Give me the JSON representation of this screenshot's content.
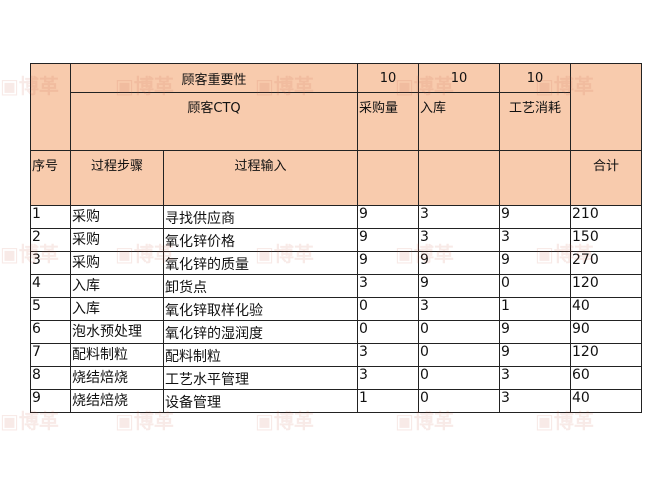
{
  "watermark": "博革",
  "header": {
    "importance_label": "顾客重要性",
    "importance": [
      "10",
      "10",
      "10"
    ],
    "ctq_label": "顾客CTQ",
    "ctq": [
      "采购量",
      "入库",
      "工艺消耗"
    ],
    "col_index": "序号",
    "col_step": "过程步骤",
    "col_input": "过程输入",
    "col_total": "合计"
  },
  "rows": [
    {
      "no": "1",
      "step": "采购",
      "input": "寻找供应商",
      "a": "9",
      "b": "3",
      "c": "9",
      "total": "210"
    },
    {
      "no": "2",
      "step": "采购",
      "input": "氧化锌价格",
      "a": "9",
      "b": "3",
      "c": "3",
      "total": "150"
    },
    {
      "no": "3",
      "step": "采购",
      "input": "氧化锌的质量",
      "a": "9",
      "b": "9",
      "c": "9",
      "total": "270"
    },
    {
      "no": "4",
      "step": "入库",
      "input": "卸货点",
      "a": "3",
      "b": "9",
      "c": "0",
      "total": "120"
    },
    {
      "no": "5",
      "step": "入库",
      "input": "氧化锌取样化验",
      "a": "0",
      "b": "3",
      "c": "1",
      "total": "40"
    },
    {
      "no": "6",
      "step": "泡水预处理",
      "input": "氧化锌的湿润度",
      "a": "0",
      "b": "0",
      "c": "9",
      "total": "90"
    },
    {
      "no": "7",
      "step": "配料制粒",
      "input": "配料制粒",
      "a": "3",
      "b": "0",
      "c": "9",
      "total": "120"
    },
    {
      "no": "8",
      "step": "烧结焙烧",
      "input": "工艺水平管理",
      "a": "3",
      "b": "0",
      "c": "3",
      "total": "60"
    },
    {
      "no": "9",
      "step": "烧结焙烧",
      "input": "设备管理",
      "a": "1",
      "b": "0",
      "c": "3",
      "total": "40"
    }
  ]
}
